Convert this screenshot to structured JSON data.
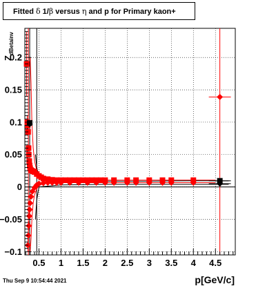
{
  "chart_data": {
    "type": "scatter",
    "title_parts": [
      "Fitted ",
      "δ",
      " 1/",
      "β",
      " versus ",
      "η",
      " and p for Primary kaon+"
    ],
    "xlabel": "p[GeV/c]",
    "ylabel_main": "Z",
    "ylabel_sub": "dBetainv",
    "xlim": [
      0.18,
      4.95
    ],
    "ylim": [
      -0.105,
      0.245
    ],
    "xticks": [
      0.5,
      1,
      1.5,
      2,
      2.5,
      3,
      3.5,
      4,
      4.5
    ],
    "xtick_labels": [
      "0.5",
      "1",
      "1.5",
      "2",
      "2.5",
      "3",
      "3.5",
      "4",
      "4.5"
    ],
    "yticks": [
      -0.1,
      -0.05,
      0,
      0.05,
      0.1,
      0.15,
      0.2
    ],
    "ytick_labels": [
      "−0.1",
      "−0.05",
      "0",
      "0.05",
      "0.1",
      "0.15",
      "0.2"
    ],
    "vlines": [
      {
        "x": 0.29,
        "color": "#000000"
      },
      {
        "x": 0.45,
        "color": "#000000"
      },
      {
        "x": 0.26,
        "color": "#ff0000"
      },
      {
        "x": 4.6,
        "color": "#ff0000"
      }
    ],
    "hline": {
      "y": 0,
      "color": "#000000"
    },
    "curves": [
      {
        "name": "",
        "color": "#ff0000",
        "upper": true,
        "x": [
          0.3,
          0.32,
          0.34,
          0.37,
          0.4,
          0.45,
          0.5,
          0.6,
          0.8,
          1.0,
          1.5,
          2.0,
          3.0,
          4.0,
          4.5
        ],
        "y": [
          0.2,
          0.16,
          0.1,
          0.06,
          0.04,
          0.025,
          0.018,
          0.013,
          0.011,
          0.0105,
          0.0105,
          0.0105,
          0.0105,
          0.0105,
          0.0105
        ]
      },
      {
        "name": "",
        "color": "#ff0000",
        "upper": false,
        "x": [
          0.3,
          0.32,
          0.34,
          0.37,
          0.4,
          0.45,
          0.5,
          0.6,
          0.8,
          1.0,
          1.5,
          2.0,
          3.0,
          4.0,
          4.5
        ],
        "y": [
          -0.1,
          -0.08,
          -0.05,
          -0.025,
          -0.012,
          -0.003,
          0.002,
          0.005,
          0.006,
          0.0065,
          0.0065,
          0.0065,
          0.0065,
          0.0065,
          0.0065
        ]
      },
      {
        "name": "",
        "color": "#000000",
        "upper": true,
        "x": [
          0.42,
          0.45,
          0.5,
          1.0,
          2.0,
          3.0,
          4.0,
          4.8
        ],
        "y": [
          0.05,
          0.03,
          0.015,
          0.01,
          0.009,
          0.009,
          0.0095,
          0.0095
        ]
      },
      {
        "name": "",
        "color": "#000000",
        "upper": false,
        "x": [
          0.42,
          0.45,
          0.5,
          1.0,
          2.0,
          3.0,
          4.0,
          4.8
        ],
        "y": [
          -0.05,
          -0.02,
          0.0,
          0.003,
          0.004,
          0.004,
          0.004,
          0.004
        ]
      }
    ],
    "series": [
      {
        "name": "",
        "color": "#ff0000",
        "points": [
          {
            "x": 0.22,
            "y": 0.19,
            "yerr": 0.05,
            "marker": "square"
          },
          {
            "x": 0.235,
            "y": 0.1,
            "yerr": 0.01,
            "marker": "square"
          },
          {
            "x": 0.245,
            "y": 0.095,
            "yerr": 0.008,
            "marker": "square"
          },
          {
            "x": 0.255,
            "y": 0.085,
            "yerr": 0.008,
            "marker": "square"
          },
          {
            "x": 0.265,
            "y": 0.06,
            "yerr": 0.005,
            "marker": "square"
          },
          {
            "x": 0.27,
            "y": 0.05,
            "yerr": 0.004,
            "marker": "square"
          },
          {
            "x": 0.28,
            "y": 0.04,
            "yerr": 0.003,
            "marker": "square"
          },
          {
            "x": 0.29,
            "y": 0.033,
            "yerr": 0.003,
            "marker": "square"
          },
          {
            "x": 0.3,
            "y": 0.029,
            "yerr": 0.002,
            "marker": "square"
          },
          {
            "x": 0.32,
            "y": 0.026,
            "yerr": 0.002,
            "marker": "square"
          },
          {
            "x": 0.34,
            "y": 0.025,
            "yerr": 0.002,
            "marker": "square"
          },
          {
            "x": 0.37,
            "y": 0.024,
            "yerr": 0.002,
            "marker": "square"
          },
          {
            "x": 0.4,
            "y": 0.023,
            "yerr": 0.002,
            "marker": "square"
          },
          {
            "x": 0.45,
            "y": 0.02,
            "yerr": 0.002,
            "marker": "square"
          },
          {
            "x": 0.5,
            "y": 0.017,
            "yerr": 0.002,
            "marker": "square"
          },
          {
            "x": 0.55,
            "y": 0.015,
            "yerr": 0.001,
            "marker": "square"
          },
          {
            "x": 0.6,
            "y": 0.013,
            "yerr": 0.001,
            "marker": "square"
          },
          {
            "x": 0.7,
            "y": 0.012,
            "yerr": 0.001,
            "marker": "square"
          },
          {
            "x": 0.8,
            "y": 0.011,
            "yerr": 0.001,
            "marker": "square"
          },
          {
            "x": 0.9,
            "y": 0.0105,
            "yerr": 0.001,
            "marker": "square"
          },
          {
            "x": 1.0,
            "y": 0.0105,
            "yerr": 0.001,
            "marker": "square"
          },
          {
            "x": 1.1,
            "y": 0.0105,
            "yerr": 0.001,
            "marker": "square"
          },
          {
            "x": 1.2,
            "y": 0.0105,
            "yerr": 0.001,
            "marker": "square"
          },
          {
            "x": 1.3,
            "y": 0.0105,
            "yerr": 0.001,
            "marker": "square"
          },
          {
            "x": 1.4,
            "y": 0.0105,
            "yerr": 0.001,
            "marker": "square"
          },
          {
            "x": 1.5,
            "y": 0.0105,
            "yerr": 0.001,
            "marker": "square"
          },
          {
            "x": 1.6,
            "y": 0.0105,
            "yerr": 0.001,
            "marker": "square"
          },
          {
            "x": 1.7,
            "y": 0.0105,
            "yerr": 0.001,
            "marker": "square"
          },
          {
            "x": 1.8,
            "y": 0.0105,
            "yerr": 0.001,
            "marker": "square"
          },
          {
            "x": 1.9,
            "y": 0.0105,
            "yerr": 0.001,
            "marker": "square"
          },
          {
            "x": 2.0,
            "y": 0.0105,
            "yerr": 0.001,
            "marker": "square"
          },
          {
            "x": 2.2,
            "y": 0.0105,
            "yerr": 0.001,
            "marker": "square"
          },
          {
            "x": 2.5,
            "y": 0.0105,
            "yerr": 0.001,
            "marker": "square"
          },
          {
            "x": 2.7,
            "y": 0.0105,
            "yerr": 0.001,
            "marker": "square"
          },
          {
            "x": 3.0,
            "y": 0.0105,
            "yerr": 0.001,
            "marker": "square"
          },
          {
            "x": 3.3,
            "y": 0.0105,
            "yerr": 0.001,
            "marker": "square"
          },
          {
            "x": 3.5,
            "y": 0.0105,
            "yerr": 0.001,
            "marker": "square"
          },
          {
            "x": 4.0,
            "y": 0.0105,
            "yerr": 0.001,
            "marker": "square"
          },
          {
            "x": 0.25,
            "y": -0.09,
            "yerr": 0.01,
            "marker": "diamond"
          },
          {
            "x": 0.26,
            "y": -0.075,
            "yerr": 0.008,
            "marker": "diamond"
          },
          {
            "x": 0.27,
            "y": -0.06,
            "yerr": 0.007,
            "marker": "diamond"
          },
          {
            "x": 0.28,
            "y": -0.045,
            "yerr": 0.006,
            "marker": "diamond"
          },
          {
            "x": 0.29,
            "y": -0.035,
            "yerr": 0.005,
            "marker": "diamond"
          },
          {
            "x": 0.3,
            "y": -0.025,
            "yerr": 0.004,
            "marker": "diamond"
          },
          {
            "x": 0.32,
            "y": -0.015,
            "yerr": 0.003,
            "marker": "diamond"
          },
          {
            "x": 0.35,
            "y": -0.007,
            "yerr": 0.003,
            "marker": "diamond"
          },
          {
            "x": 0.4,
            "y": -0.001,
            "yerr": 0.002,
            "marker": "diamond"
          },
          {
            "x": 0.45,
            "y": 0.003,
            "yerr": 0.002,
            "marker": "diamond"
          },
          {
            "x": 0.5,
            "y": 0.005,
            "yerr": 0.002,
            "marker": "diamond"
          },
          {
            "x": 0.6,
            "y": 0.006,
            "yerr": 0.001,
            "marker": "diamond"
          },
          {
            "x": 0.7,
            "y": 0.0065,
            "yerr": 0.001,
            "marker": "diamond"
          },
          {
            "x": 0.8,
            "y": 0.0065,
            "yerr": 0.001,
            "marker": "diamond"
          },
          {
            "x": 0.9,
            "y": 0.0065,
            "yerr": 0.001,
            "marker": "diamond"
          },
          {
            "x": 1.0,
            "y": 0.0065,
            "yerr": 0.001,
            "marker": "diamond"
          },
          {
            "x": 1.2,
            "y": 0.0065,
            "yerr": 0.001,
            "marker": "diamond"
          },
          {
            "x": 1.4,
            "y": 0.0065,
            "yerr": 0.001,
            "marker": "diamond"
          },
          {
            "x": 1.6,
            "y": 0.0065,
            "yerr": 0.001,
            "marker": "diamond"
          },
          {
            "x": 1.8,
            "y": 0.0065,
            "yerr": 0.001,
            "marker": "diamond"
          },
          {
            "x": 2.0,
            "y": 0.0065,
            "yerr": 0.001,
            "marker": "diamond"
          },
          {
            "x": 2.2,
            "y": 0.0065,
            "yerr": 0.001,
            "marker": "diamond"
          },
          {
            "x": 2.5,
            "y": 0.0065,
            "yerr": 0.001,
            "marker": "diamond"
          },
          {
            "x": 2.7,
            "y": 0.0065,
            "yerr": 0.001,
            "marker": "diamond"
          },
          {
            "x": 3.0,
            "y": 0.0065,
            "yerr": 0.001,
            "marker": "diamond"
          },
          {
            "x": 3.3,
            "y": 0.0065,
            "yerr": 0.001,
            "marker": "diamond"
          },
          {
            "x": 3.5,
            "y": 0.0065,
            "yerr": 0.001,
            "marker": "diamond"
          },
          {
            "x": 4.0,
            "y": 0.0065,
            "yerr": 0.001,
            "marker": "diamond"
          },
          {
            "x": 4.6,
            "y": 0.139,
            "yerr": 0.0,
            "xerr": 0.25,
            "marker": "diamond"
          }
        ]
      },
      {
        "name": "",
        "color": "#000000",
        "points": [
          {
            "x": 0.29,
            "y": 0.099,
            "yerr": 0.003,
            "marker": "square"
          },
          {
            "x": 0.29,
            "y": 0.097,
            "yerr": 0.003,
            "marker": "diamond"
          },
          {
            "x": 4.6,
            "y": 0.0095,
            "yerr": 0.001,
            "xerr": 0.25,
            "marker": "square"
          },
          {
            "x": 4.6,
            "y": 0.005,
            "yerr": 0.001,
            "xerr": 0.25,
            "marker": "diamond"
          }
        ]
      }
    ]
  },
  "footer": {
    "timestamp": "Thu Sep  9 10:54:44 2021"
  }
}
